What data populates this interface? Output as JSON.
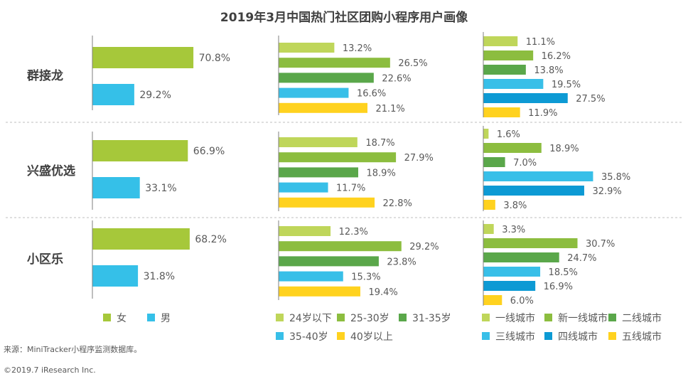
{
  "title": "2019年3月中国热门社区团购小程序用户画像",
  "source": "来源：MiniTracker小程序监测数据库。",
  "copyright": "©2019.7 iResearch Inc.",
  "colors": {
    "text": "#595959",
    "title": "#404040",
    "separator": "#bfbfbf",
    "axis": "#7f7f7f"
  },
  "chart_data": [
    {
      "type": "bar",
      "orientation": "horizontal",
      "categories": [
        "群接龙",
        "兴盛优选",
        "小区乐"
      ],
      "series": [
        {
          "name": "女",
          "color": "#a6c83a",
          "values": [
            70.8,
            66.9,
            68.2
          ],
          "labels": [
            "70.8%",
            "66.9%",
            "68.2%"
          ]
        },
        {
          "name": "男",
          "color": "#35c0e8",
          "values": [
            29.2,
            33.1,
            31.8
          ],
          "labels": [
            "29.2%",
            "33.1%",
            "31.8%"
          ]
        }
      ]
    },
    {
      "type": "bar",
      "orientation": "horizontal",
      "categories": [
        "群接龙",
        "兴盛优选",
        "小区乐"
      ],
      "series": [
        {
          "name": "24岁以下",
          "color": "#bfd65a",
          "values": [
            13.2,
            18.7,
            12.3
          ],
          "labels": [
            "13.2%",
            "18.7%",
            "12.3%"
          ]
        },
        {
          "name": "25-30岁",
          "color": "#8cbd3f",
          "values": [
            26.5,
            27.9,
            29.2
          ],
          "labels": [
            "26.5%",
            "27.9%",
            "29.2%"
          ]
        },
        {
          "name": "31-35岁",
          "color": "#5aa74a",
          "values": [
            22.6,
            18.9,
            23.8
          ],
          "labels": [
            "22.6%",
            "18.9%",
            "23.8%"
          ]
        },
        {
          "name": "35-40岁",
          "color": "#38bfe8",
          "values": [
            16.6,
            11.7,
            15.3
          ],
          "labels": [
            "16.6%",
            "11.7%",
            "15.3%"
          ]
        },
        {
          "name": "40岁以上",
          "color": "#ffd21f",
          "values": [
            21.1,
            22.8,
            19.4
          ],
          "labels": [
            "21.1%",
            "22.8%",
            "19.4%"
          ]
        }
      ],
      "legend": [
        "24岁以下",
        "25-30岁",
        "31-35岁",
        "35-40岁",
        "40岁以上"
      ]
    },
    {
      "type": "bar",
      "orientation": "horizontal",
      "categories": [
        "群接龙",
        "兴盛优选",
        "小区乐"
      ],
      "series": [
        {
          "name": "一线城市",
          "color": "#bfd65a",
          "values": [
            11.1,
            1.6,
            3.3
          ],
          "labels": [
            "11.1%",
            "1.6%",
            "3.3%"
          ]
        },
        {
          "name": "新一线城市",
          "color": "#8cbd3f",
          "values": [
            16.2,
            18.9,
            30.7
          ],
          "labels": [
            "16.2%",
            "18.9%",
            "30.7%"
          ]
        },
        {
          "name": "二线城市",
          "color": "#5aa74a",
          "values": [
            13.8,
            7.0,
            24.7
          ],
          "labels": [
            "13.8%",
            "7.0%",
            "24.7%"
          ]
        },
        {
          "name": "三线城市",
          "color": "#38bfe8",
          "values": [
            19.5,
            35.8,
            18.5
          ],
          "labels": [
            "19.5%",
            "35.8%",
            "18.5%"
          ]
        },
        {
          "name": "四线城市",
          "color": "#0d9ad4",
          "values": [
            27.5,
            32.9,
            16.9
          ],
          "labels": [
            "27.5%",
            "32.9%",
            "16.9%"
          ]
        },
        {
          "name": "五线城市",
          "color": "#ffd21f",
          "values": [
            11.9,
            3.8,
            6.0
          ],
          "labels": [
            "11.9%",
            "3.8%",
            "6.0%"
          ]
        }
      ],
      "legend": [
        "一线城市",
        "新一线城市",
        "二线城市",
        "三线城市",
        "四线城市",
        "五线城市"
      ]
    }
  ]
}
